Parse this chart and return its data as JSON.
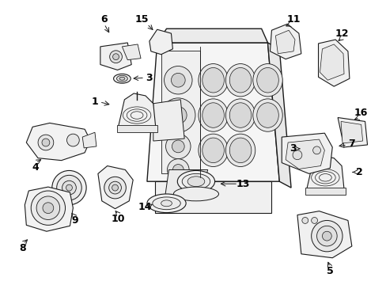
{
  "bg_color": "#ffffff",
  "line_color": "#1a1a1a",
  "label_color": "#000000",
  "label_font_size": 9,
  "figsize": [
    4.89,
    3.6
  ],
  "dpi": 100
}
